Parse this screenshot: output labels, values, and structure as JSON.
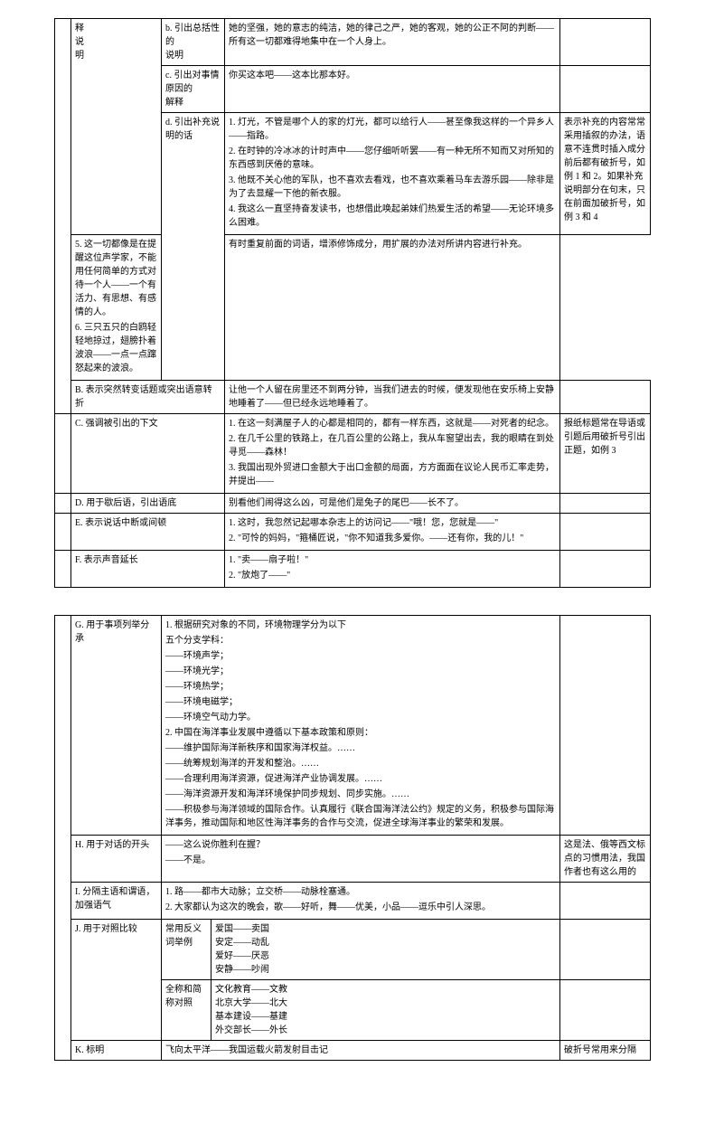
{
  "table1": {
    "r1": {
      "c2": "释\n说\n明",
      "c3": "b. 引出总括性的\n说明",
      "c4": "她的坚强，她的意志的纯洁，她的律己之严，她的客观，她的公正不阿的判断——所有这一切都难得地集中在一个人身上。"
    },
    "r2": {
      "c3": "c. 引出对事情原因的\n解释",
      "c4": "你买这本吧——这本比那本好。"
    },
    "r3": {
      "c3": "d. 引出补充说明的话",
      "c4a1": "1. 灯光，不管是哪个人的家的灯光，都可以给行人——甚至像我这样的一个异乡人——指路。",
      "c4a2": "2. 在时钟的冷冰冰的计时声中——您仔细听听罢——有一种无所不知而又对所知的东西感到厌倦的意味。",
      "c4a3": "3. 他既不关心他的军队，也不喜欢去看戏，也不喜欢乘着马车去游乐园——除非是为了去显耀一下他的新衣服。",
      "c4a4": "4. 我这么一直坚持奋发读书，也想借此唤起弟妹们热爱生活的希望——无论环境多么困难。",
      "c5a": "表示补充的内容常常采用插叙的办法，语意不连贯时插入成分前后都有破折号，如例 1 和 2。如果补充说明部分在句末，只在前面加破折号，如例 3 和 4",
      "c4b1": "5. 这一切都像是在提醒这位声学家，不能用任何简单的方式对待一个人——一个有活力、有思想、有感情的人。",
      "c4b2": "6. 三只五只的白鸥轻轻地掠过，翅膀扑着波浪——一点一点蹿怒起来的波浪。",
      "c5b": "有时重复前面的词语，增添修饰成分，用扩展的办法对所讲内容进行补充。"
    },
    "r4": {
      "c2": "B. 表示突然转变话题或突出语意转折",
      "c4": "让他一个人留在房里还不到两分钟，当我们进去的时候，便发现他在安乐椅上安静地睡着了——但已经永远地睡着了。"
    },
    "r5": {
      "c2": "C. 强调被引出的下文",
      "c4a": "1. 在这一刻满屋子人的心都是相同的，都有一样东西，这就是——对死者的纪念。",
      "c4b": "2. 在几千公里的铁路上，在几百公里的公路上，我从车窗望出去，我的眼睛在到处寻觅——森林！",
      "c4c": "3. 我国出现外贸进口金额大于出口金额的局面，方方面面在议论人民币汇率走势，并提出——",
      "c5": "报纸标题常在导语或引题后用破折号引出正题，如例 3"
    },
    "r6": {
      "c2": "D. 用于歇后语，引出语底",
      "c4": "别看他们闹得这么凶，可是他们是兔子的尾巴——长不了。"
    },
    "r7": {
      "c2": "E. 表示说话中断或间顿",
      "c4a": "1. 这时，我忽然记起哪本杂志上的访问记——\"哦！您，您就是——\"",
      "c4b": "2. \"可怜的妈妈，\"箍桶匠说，\"你不知道我多爱你。——还有你，我的儿！\""
    },
    "r8": {
      "c2": "F. 表示声音延长",
      "c4a": "1. \"卖——扇子啦！\"",
      "c4b": "2. \"放炮了——\""
    }
  },
  "table2": {
    "r1": {
      "c2": "G. 用于事项列举分承",
      "c3_lines": [
        "1. 根据研究对象的不同，环境物理学分为以下",
        "五个分支学科：",
        "——环境声学；",
        "——环境光学；",
        "——环境热学；",
        "——环境电磁学；",
        "——环境空气动力学。",
        "2. 中国在海洋事业发展中遵循以下基本政策和原则：",
        "——维护国际海洋新秩序和国家海洋权益。……",
        "——统筹规划海洋的开发和整治。……",
        "——合理利用海洋资源，促进海洋产业协调发展。……",
        "——海洋资源开发和海洋环境保护同步规划、同步实施。……",
        "——积极参与海洋领域的国际合作。认真履行《联合国海洋法公约》规定的义务，积极参与国际海洋事务，推动国际和地区性海洋事务的合作与交流，促进全球海洋事业的繁荣和发展。"
      ]
    },
    "r2": {
      "c2": "H. 用于对话的开头",
      "c3a": "——这么说你胜利在握？",
      "c3b": "——不是。",
      "c4": "这是法、俄等西文标点的习惯用法，我国作者也有这么用的"
    },
    "r3": {
      "c2": "I. 分隔主语和谓语，加强语气",
      "c3a": "1. 路——都市大动脉；立交桥——动脉栓塞通。",
      "c3b": "2. 大家都认为这次的晚会，歌——好听，舞——优美，小品——逗乐中引人深思。"
    },
    "r4": {
      "c2": "J. 用于对照比较",
      "sub1": {
        "c3": "常用反义词举例",
        "c4": "爱国——卖国\n安定——动乱\n爱好——厌恶\n安静——吵闹"
      },
      "sub2": {
        "c3": "全称和简称对照",
        "c4": "文化教育——文教\n北京大学——北大\n基本建设——基建\n外交部长——外长"
      }
    },
    "r5": {
      "c2": "K. 标明",
      "c3": "飞向太平洋——我国运载火箭发射目击记",
      "c4": "破折号常用来分隔"
    }
  }
}
